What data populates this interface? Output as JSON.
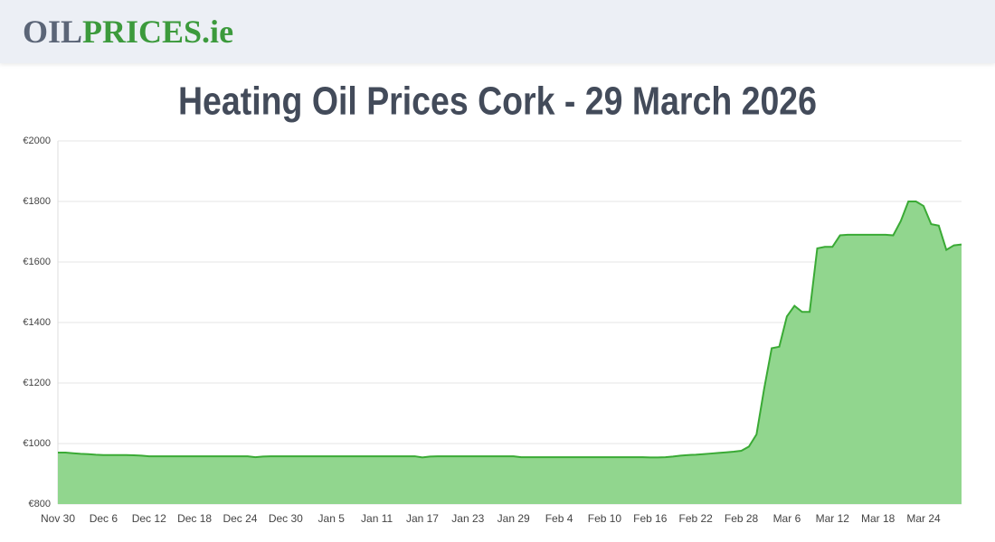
{
  "header": {
    "logo": [
      "OIL",
      "PRICES.ie"
    ]
  },
  "chart_data": {
    "type": "area",
    "title": "Heating Oil Prices Cork - 29 March 2026",
    "color": "#3aaa35",
    "fill": "#91d68e",
    "grid": true,
    "categories": [
      "Nov 30",
      null,
      null,
      null,
      null,
      null,
      "Dec 6",
      null,
      null,
      null,
      null,
      null,
      "Dec 12",
      null,
      null,
      null,
      null,
      null,
      "Dec 18",
      null,
      null,
      null,
      null,
      null,
      "Dec 24",
      null,
      null,
      null,
      null,
      null,
      "Dec 30",
      null,
      null,
      null,
      null,
      null,
      "Jan 5",
      null,
      null,
      null,
      null,
      null,
      "Jan 11",
      null,
      null,
      null,
      null,
      null,
      "Jan 17",
      null,
      null,
      null,
      null,
      null,
      "Jan 23",
      null,
      null,
      null,
      null,
      null,
      "Jan 29",
      null,
      null,
      null,
      null,
      null,
      "Feb 4",
      null,
      null,
      null,
      null,
      null,
      "Feb 10",
      null,
      null,
      null,
      null,
      null,
      "Feb 16",
      null,
      null,
      null,
      null,
      null,
      "Feb 22",
      null,
      null,
      null,
      null,
      null,
      "Feb 28",
      null,
      null,
      null,
      null,
      null,
      "Mar 6",
      null,
      null,
      null,
      null,
      null,
      "Mar 12",
      null,
      null,
      null,
      null,
      null,
      "Mar 18",
      null,
      null,
      null,
      null,
      null,
      "Mar 24",
      null,
      null,
      null,
      null,
      null
    ],
    "values": [
      970,
      970,
      968,
      966,
      965,
      963,
      962,
      962,
      962,
      962,
      961,
      960,
      958,
      958,
      958,
      958,
      958,
      958,
      958,
      958,
      958,
      958,
      958,
      958,
      958,
      958,
      955,
      957,
      958,
      958,
      958,
      958,
      958,
      958,
      958,
      958,
      958,
      958,
      958,
      958,
      958,
      958,
      958,
      958,
      958,
      958,
      958,
      958,
      954,
      957,
      958,
      958,
      958,
      958,
      958,
      958,
      958,
      958,
      958,
      958,
      958,
      955,
      955,
      955,
      955,
      955,
      955,
      955,
      955,
      955,
      955,
      955,
      955,
      955,
      955,
      955,
      955,
      955,
      954,
      954,
      955,
      957,
      960,
      962,
      963,
      965,
      967,
      969,
      971,
      973,
      976,
      990,
      1030,
      1180,
      1315,
      1320,
      1420,
      1455,
      1435,
      1435,
      1645,
      1650,
      1650,
      1688,
      1690,
      1690,
      1690,
      1690,
      1690,
      1690,
      1688,
      1735,
      1800,
      1800,
      1785,
      1725,
      1720,
      1640,
      1655,
      1658
    ],
    "ylim": [
      800,
      2000
    ],
    "yticks": [
      {
        "value": 800,
        "label": "€800"
      },
      {
        "value": 1000,
        "label": "€1000"
      },
      {
        "value": 1200,
        "label": "€1200"
      },
      {
        "value": 1400,
        "label": "€1400"
      },
      {
        "value": 1600,
        "label": "€1600"
      },
      {
        "value": 1800,
        "label": "€1800"
      },
      {
        "value": 2000,
        "label": "€2000"
      }
    ]
  }
}
